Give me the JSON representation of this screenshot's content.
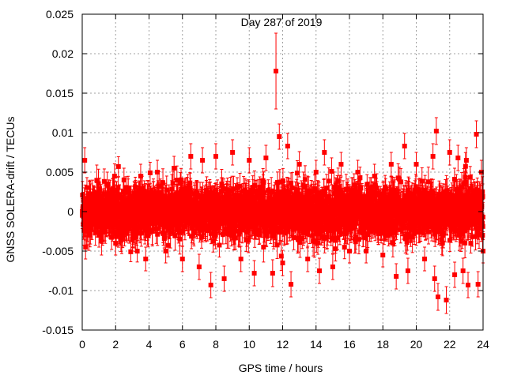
{
  "chart_data": {
    "type": "scatter",
    "title": "Day 287 of 2019",
    "xlabel": "GPS time / hours",
    "ylabel": "GNSS SOLERA-drift / TECUs",
    "xlim": [
      0,
      24
    ],
    "ylim": [
      -0.015,
      0.025
    ],
    "xticks": [
      0,
      2,
      4,
      6,
      8,
      10,
      12,
      14,
      16,
      18,
      20,
      22,
      24
    ],
    "xtick_labels": [
      "0",
      "2",
      "4",
      "6",
      "8",
      "10",
      "12",
      "14",
      "16",
      "18",
      "20",
      "22",
      "24"
    ],
    "yticks": [
      -0.015,
      -0.01,
      -0.005,
      0,
      0.005,
      0.01,
      0.015,
      0.02,
      0.025
    ],
    "ytick_labels": [
      "-0.015",
      "-0.01",
      "-0.005",
      "0",
      "0.005",
      "0.01",
      "0.015",
      "0.02",
      "0.025"
    ],
    "grid": true,
    "color": "#ff0000",
    "error_bars": true,
    "series": [
      {
        "name": "drift",
        "points": [
          {
            "x": 0.0,
            "y": 0.0,
            "err": 0.0015
          },
          {
            "x": 0.15,
            "y": 0.0065,
            "err": 0.0016
          },
          {
            "x": 0.2,
            "y": -0.0045,
            "err": 0.0015
          },
          {
            "x": 0.5,
            "y": 0.002,
            "err": 0.0015
          },
          {
            "x": 1.0,
            "y": -0.003,
            "err": 0.0015
          },
          {
            "x": 1.5,
            "y": 0.0035,
            "err": 0.0015
          },
          {
            "x": 2.0,
            "y": -0.004,
            "err": 0.0015
          },
          {
            "x": 2.5,
            "y": 0.004,
            "err": 0.0015
          },
          {
            "x": 3.0,
            "y": -0.0035,
            "err": 0.0015
          },
          {
            "x": 3.5,
            "y": 0.0045,
            "err": 0.0015
          },
          {
            "x": 3.8,
            "y": -0.006,
            "err": 0.0015
          },
          {
            "x": 4.5,
            "y": 0.005,
            "err": 0.0015
          },
          {
            "x": 5.0,
            "y": -0.005,
            "err": 0.0015
          },
          {
            "x": 5.5,
            "y": 0.0055,
            "err": 0.0015
          },
          {
            "x": 6.0,
            "y": -0.006,
            "err": 0.0016
          },
          {
            "x": 6.5,
            "y": 0.007,
            "err": 0.0016
          },
          {
            "x": 7.0,
            "y": -0.007,
            "err": 0.0016
          },
          {
            "x": 7.2,
            "y": 0.0065,
            "err": 0.0016
          },
          {
            "x": 7.7,
            "y": -0.0093,
            "err": 0.0016
          },
          {
            "x": 8.0,
            "y": 0.007,
            "err": 0.0016
          },
          {
            "x": 8.5,
            "y": -0.0085,
            "err": 0.0016
          },
          {
            "x": 9.0,
            "y": 0.0075,
            "err": 0.0016
          },
          {
            "x": 9.5,
            "y": -0.006,
            "err": 0.0016
          },
          {
            "x": 10.0,
            "y": 0.0065,
            "err": 0.0016
          },
          {
            "x": 10.3,
            "y": -0.0078,
            "err": 0.0016
          },
          {
            "x": 11.0,
            "y": 0.0068,
            "err": 0.0016
          },
          {
            "x": 11.4,
            "y": -0.0078,
            "err": 0.0017
          },
          {
            "x": 11.6,
            "y": 0.0178,
            "err": 0.0048
          },
          {
            "x": 11.8,
            "y": 0.0095,
            "err": 0.0016
          },
          {
            "x": 12.0,
            "y": -0.0065,
            "err": 0.0016
          },
          {
            "x": 12.3,
            "y": 0.0083,
            "err": 0.0016
          },
          {
            "x": 12.5,
            "y": -0.0092,
            "err": 0.0016
          },
          {
            "x": 13.0,
            "y": 0.006,
            "err": 0.0016
          },
          {
            "x": 13.5,
            "y": -0.006,
            "err": 0.0016
          },
          {
            "x": 14.0,
            "y": 0.005,
            "err": 0.0015
          },
          {
            "x": 14.2,
            "y": -0.0075,
            "err": 0.0016
          },
          {
            "x": 14.5,
            "y": 0.0075,
            "err": 0.0016
          },
          {
            "x": 15.0,
            "y": -0.007,
            "err": 0.0016
          },
          {
            "x": 15.5,
            "y": 0.006,
            "err": 0.0015
          },
          {
            "x": 16.0,
            "y": -0.005,
            "err": 0.0015
          },
          {
            "x": 16.5,
            "y": 0.005,
            "err": 0.0015
          },
          {
            "x": 17.0,
            "y": -0.005,
            "err": 0.0015
          },
          {
            "x": 17.5,
            "y": 0.0045,
            "err": 0.0015
          },
          {
            "x": 18.0,
            "y": -0.0055,
            "err": 0.0015
          },
          {
            "x": 18.5,
            "y": 0.006,
            "err": 0.0015
          },
          {
            "x": 18.8,
            "y": -0.0082,
            "err": 0.0016
          },
          {
            "x": 19.3,
            "y": 0.0083,
            "err": 0.0016
          },
          {
            "x": 19.5,
            "y": -0.0075,
            "err": 0.0016
          },
          {
            "x": 20.0,
            "y": 0.006,
            "err": 0.0015
          },
          {
            "x": 20.5,
            "y": -0.006,
            "err": 0.0015
          },
          {
            "x": 21.0,
            "y": 0.007,
            "err": 0.0016
          },
          {
            "x": 21.1,
            "y": -0.0085,
            "err": 0.0016
          },
          {
            "x": 21.2,
            "y": 0.0102,
            "err": 0.0017
          },
          {
            "x": 21.3,
            "y": -0.0108,
            "err": 0.0017
          },
          {
            "x": 21.8,
            "y": -0.0112,
            "err": 0.0017
          },
          {
            "x": 22.0,
            "y": 0.0075,
            "err": 0.0016
          },
          {
            "x": 22.3,
            "y": -0.008,
            "err": 0.0016
          },
          {
            "x": 22.5,
            "y": 0.0068,
            "err": 0.0016
          },
          {
            "x": 22.8,
            "y": -0.0075,
            "err": 0.0016
          },
          {
            "x": 23.0,
            "y": 0.0065,
            "err": 0.0016
          },
          {
            "x": 23.1,
            "y": -0.0093,
            "err": 0.0016
          },
          {
            "x": 23.6,
            "y": 0.0098,
            "err": 0.0017
          },
          {
            "x": 23.7,
            "y": -0.0092,
            "err": 0.0016
          },
          {
            "x": 23.9,
            "y": 0.005,
            "err": 0.0015
          },
          {
            "x": 24.0,
            "y": -0.005,
            "err": 0.0015
          }
        ],
        "dense_band": {
          "x_start": 0.0,
          "x_end": 24.0,
          "step_hours": 0.0083,
          "center": 0.0,
          "typical_scatter": 0.0025,
          "typical_err": 0.0015
        }
      }
    ]
  }
}
